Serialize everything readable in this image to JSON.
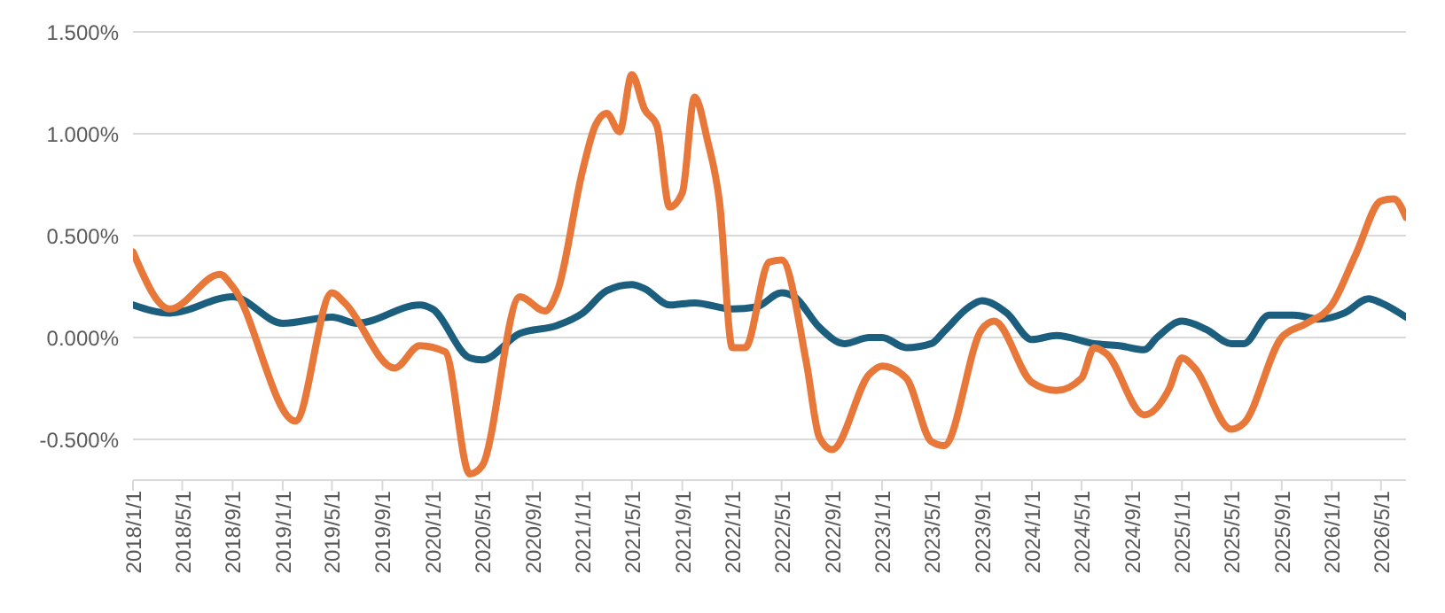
{
  "chart_data": {
    "type": "line",
    "xlim": [
      "2018-01-01",
      "2026-07-01"
    ],
    "xticks": [
      {
        "value": "2018-01-01",
        "label": "2018/1/1"
      },
      {
        "value": "2018-05-01",
        "label": "2018/5/1"
      },
      {
        "value": "2018-09-01",
        "label": "2018/9/1"
      },
      {
        "value": "2019-01-01",
        "label": "2019/1/1"
      },
      {
        "value": "2019-05-01",
        "label": "2019/5/1"
      },
      {
        "value": "2019-09-01",
        "label": "2019/9/1"
      },
      {
        "value": "2020-01-01",
        "label": "2020/1/1"
      },
      {
        "value": "2020-05-01",
        "label": "2020/5/1"
      },
      {
        "value": "2020-09-01",
        "label": "2020/9/1"
      },
      {
        "value": "2021-01-01",
        "label": "2021/1/1"
      },
      {
        "value": "2021-05-01",
        "label": "2021/5/1"
      },
      {
        "value": "2021-09-01",
        "label": "2021/9/1"
      },
      {
        "value": "2022-01-01",
        "label": "2022/1/1"
      },
      {
        "value": "2022-05-01",
        "label": "2022/5/1"
      },
      {
        "value": "2022-09-01",
        "label": "2022/9/1"
      },
      {
        "value": "2023-01-01",
        "label": "2023/1/1"
      },
      {
        "value": "2023-05-01",
        "label": "2023/5/1"
      },
      {
        "value": "2023-09-01",
        "label": "2023/9/1"
      },
      {
        "value": "2024-01-01",
        "label": "2024/1/1"
      },
      {
        "value": "2024-05-01",
        "label": "2024/5/1"
      },
      {
        "value": "2024-09-01",
        "label": "2024/9/1"
      },
      {
        "value": "2025-01-01",
        "label": "2025/1/1"
      },
      {
        "value": "2025-05-01",
        "label": "2025/5/1"
      },
      {
        "value": "2025-09-01",
        "label": "2025/9/1"
      },
      {
        "value": "2026-01-01",
        "label": "2026/1/1"
      },
      {
        "value": "2026-05-01",
        "label": "2026/5/1"
      }
    ],
    "ylim": [
      -0.7,
      1.5
    ],
    "yticks": [
      {
        "value": -0.5,
        "label": "-0.500%"
      },
      {
        "value": 0,
        "label": "0.000%"
      },
      {
        "value": 0.5,
        "label": "0.500%"
      },
      {
        "value": 1,
        "label": "1.000%"
      },
      {
        "value": 1.5,
        "label": "1.500%"
      }
    ],
    "grid": "y",
    "legend": false,
    "marker": "none",
    "line_style": "solid",
    "series": [
      {
        "color": "#1b5e7e",
        "x": [
          "2018-01",
          "2018-04",
          "2018-09",
          "2019-01",
          "2019-05",
          "2019-07",
          "2019-12",
          "2020-01",
          "2020-04",
          "2020-05",
          "2020-08",
          "2020-11",
          "2021-01",
          "2021-03",
          "2021-05",
          "2021-06",
          "2021-08",
          "2021-10",
          "2022-01",
          "2022-03",
          "2022-05",
          "2022-06",
          "2022-08",
          "2022-10",
          "2022-12",
          "2023-01",
          "2023-03",
          "2023-05",
          "2023-06",
          "2023-08",
          "2023-09",
          "2023-11",
          "2024-01",
          "2024-03",
          "2024-06",
          "2024-08",
          "2024-10",
          "2024-11",
          "2025-01",
          "2025-03",
          "2025-05",
          "2025-06",
          "2025-08",
          "2025-10",
          "2025-12",
          "2026-02",
          "2026-04",
          "2026-05",
          "2026-07"
        ],
        "values": [
          0.16,
          0.12,
          0.2,
          0.07,
          0.1,
          0.07,
          0.16,
          0.14,
          -0.1,
          -0.11,
          0.02,
          0.06,
          0.12,
          0.23,
          0.26,
          0.24,
          0.16,
          0.17,
          0.14,
          0.15,
          0.22,
          0.2,
          0.05,
          -0.03,
          0.0,
          0.0,
          -0.05,
          -0.03,
          0.03,
          0.15,
          0.18,
          0.12,
          -0.01,
          0.01,
          -0.03,
          -0.04,
          -0.06,
          0.0,
          0.08,
          0.04,
          -0.03,
          -0.03,
          0.11,
          0.11,
          0.09,
          0.12,
          0.19,
          0.17,
          0.1
        ]
      },
      {
        "color": "#e8783a",
        "x": [
          "2018-01",
          "2018-04",
          "2018-08",
          "2018-09",
          "2019-02",
          "2019-05",
          "2019-06",
          "2019-10",
          "2019-12",
          "2020-02",
          "2020-04",
          "2020-05",
          "2020-08",
          "2020-10",
          "2020-11",
          "2021-01",
          "2021-02",
          "2021-03",
          "2021-04",
          "2021-05",
          "2021-06",
          "2021-07",
          "2021-08",
          "2021-09",
          "2021-10",
          "2021-11",
          "2021-12",
          "2022-01",
          "2022-02",
          "2022-04",
          "2022-05",
          "2022-07",
          "2022-08",
          "2022-09",
          "2022-12",
          "2023-01",
          "2023-03",
          "2023-05",
          "2023-06",
          "2023-09",
          "2023-10",
          "2024-01",
          "2024-03",
          "2024-05",
          "2024-06",
          "2024-07",
          "2024-10",
          "2024-12",
          "2025-01",
          "2025-02",
          "2025-05",
          "2025-06",
          "2025-09",
          "2025-11",
          "2026-01",
          "2026-03",
          "2026-05",
          "2026-06",
          "2026-07"
        ],
        "values": [
          0.42,
          0.14,
          0.31,
          0.25,
          -0.41,
          0.22,
          0.17,
          -0.15,
          -0.04,
          -0.07,
          -0.67,
          -0.63,
          0.2,
          0.13,
          0.23,
          0.82,
          1.04,
          1.1,
          1.01,
          1.29,
          1.12,
          1.04,
          0.64,
          0.71,
          1.18,
          0.97,
          0.66,
          -0.05,
          -0.05,
          0.37,
          0.38,
          -0.13,
          -0.49,
          -0.55,
          -0.18,
          -0.14,
          -0.2,
          -0.51,
          -0.53,
          0.04,
          0.08,
          -0.22,
          -0.26,
          -0.2,
          -0.05,
          -0.08,
          -0.38,
          -0.25,
          -0.1,
          -0.15,
          -0.45,
          -0.42,
          0.0,
          0.07,
          0.16,
          0.41,
          0.67,
          0.68,
          0.59
        ]
      }
    ]
  }
}
